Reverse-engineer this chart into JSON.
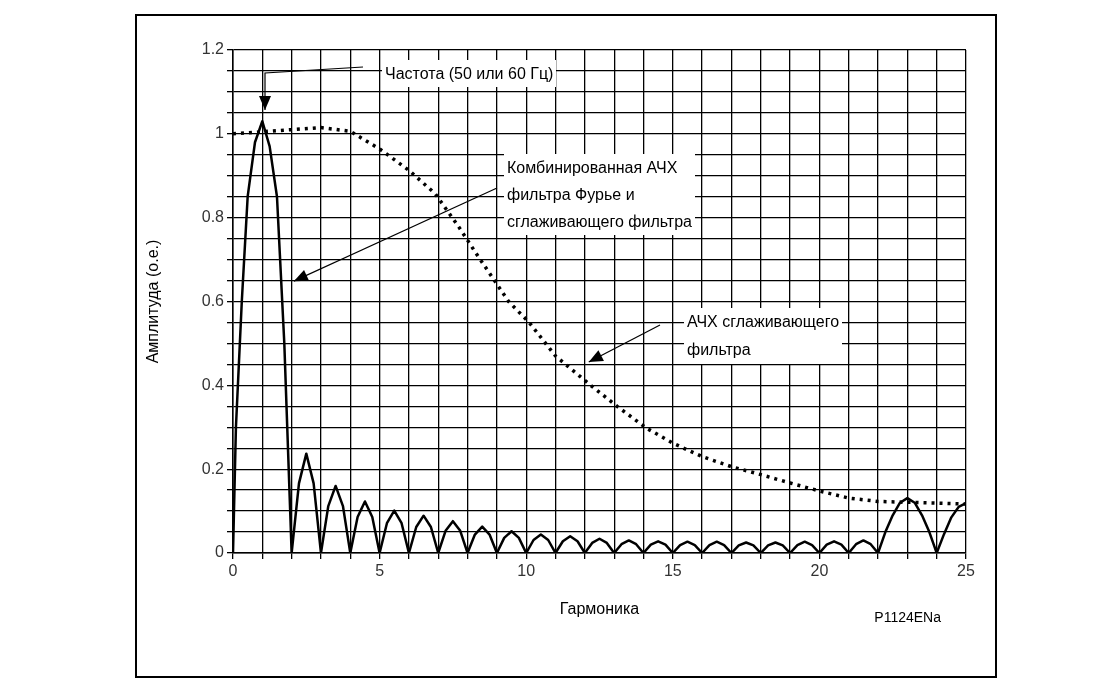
{
  "chart_data": {
    "type": "line",
    "xlabel": "Гармоника",
    "ylabel": "Амплитуда (о.е.)",
    "xlim": [
      0,
      25
    ],
    "ylim": [
      0,
      1.2
    ],
    "xticks": [
      0,
      {
        "value": 1,
        "label": null
      },
      {
        "value": 2,
        "label": null
      },
      {
        "value": 3,
        "label": null
      },
      {
        "value": 4,
        "label": null
      },
      5,
      {
        "value": 6,
        "label": null
      },
      {
        "value": 7,
        "label": null
      },
      {
        "value": 8,
        "label": null
      },
      {
        "value": 9,
        "label": null
      },
      10,
      {
        "value": 11,
        "label": null
      },
      {
        "value": 12,
        "label": null
      },
      {
        "value": 13,
        "label": null
      },
      {
        "value": 14,
        "label": null
      },
      15,
      {
        "value": 16,
        "label": null
      },
      {
        "value": 17,
        "label": null
      },
      {
        "value": 18,
        "label": null
      },
      {
        "value": 19,
        "label": null
      },
      20,
      {
        "value": 21,
        "label": null
      },
      {
        "value": 22,
        "label": null
      },
      {
        "value": 23,
        "label": null
      },
      {
        "value": 24,
        "label": null
      },
      25
    ],
    "yticks": [
      0,
      {
        "value": 0.05,
        "label": null
      },
      {
        "value": 0.1,
        "label": null
      },
      {
        "value": 0.15,
        "label": null
      },
      0.2,
      {
        "value": 0.25,
        "label": null
      },
      {
        "value": 0.3,
        "label": null
      },
      {
        "value": 0.35,
        "label": null
      },
      0.4,
      {
        "value": 0.45,
        "label": null
      },
      {
        "value": 0.5,
        "label": null
      },
      {
        "value": 0.55,
        "label": null
      },
      0.6,
      {
        "value": 0.65,
        "label": null
      },
      {
        "value": 0.7,
        "label": null
      },
      {
        "value": 0.75,
        "label": null
      },
      0.8,
      {
        "value": 0.85,
        "label": null
      },
      {
        "value": 0.9,
        "label": null
      },
      {
        "value": 0.95,
        "label": null
      },
      1,
      {
        "value": 1.05,
        "label": null
      },
      {
        "value": 1.1,
        "label": null
      },
      {
        "value": 1.15,
        "label": null
      },
      1.2
    ],
    "grid": true,
    "legend": false,
    "marker": "none",
    "series": [
      {
        "color": "#000000",
        "line_style": "solid",
        "x": [
          0,
          0.1,
          0.3,
          0.5,
          0.75,
          1,
          1.25,
          1.5,
          1.75,
          2,
          2.25,
          2.5,
          2.75,
          3,
          3.25,
          3.5,
          3.75,
          4,
          4.25,
          4.5,
          4.75,
          5,
          5.25,
          5.5,
          5.75,
          6,
          6.25,
          6.5,
          6.75,
          7,
          7.25,
          7.5,
          7.75,
          8,
          8.25,
          8.5,
          8.75,
          9,
          9.25,
          9.5,
          9.75,
          10,
          10.25,
          10.5,
          10.75,
          11,
          11.25,
          11.5,
          11.75,
          12,
          12.25,
          12.5,
          12.75,
          13,
          13.25,
          13.5,
          13.75,
          14,
          14.25,
          14.5,
          14.75,
          15,
          15.25,
          15.5,
          15.75,
          16,
          16.25,
          16.5,
          16.75,
          17,
          17.25,
          17.5,
          17.75,
          18,
          18.25,
          18.5,
          18.75,
          19,
          19.25,
          19.5,
          19.75,
          20,
          20.25,
          20.5,
          20.75,
          21,
          21.25,
          21.5,
          21.75,
          22,
          22.25,
          22.5,
          22.75,
          23,
          23.25,
          23.5,
          23.75,
          24,
          24.25,
          24.5,
          24.75,
          25
        ],
        "values": [
          0,
          0.3,
          0.6,
          0.85,
          0.98,
          1.03,
          0.97,
          0.85,
          0.5,
          0,
          0.166,
          0.237,
          0.166,
          0,
          0.112,
          0.16,
          0.112,
          0,
          0.086,
          0.123,
          0.086,
          0,
          0.071,
          0.101,
          0.071,
          0,
          0.062,
          0.089,
          0.062,
          0,
          0.053,
          0.076,
          0.053,
          0,
          0.044,
          0.063,
          0.044,
          0,
          0.036,
          0.052,
          0.036,
          0,
          0.031,
          0.044,
          0.031,
          0,
          0.028,
          0.04,
          0.028,
          0,
          0.024,
          0.034,
          0.024,
          0,
          0.021,
          0.03,
          0.021,
          0,
          0.02,
          0.028,
          0.02,
          0,
          0.019,
          0.027,
          0.019,
          0,
          0.019,
          0.027,
          0.019,
          0,
          0.018,
          0.025,
          0.018,
          0,
          0.018,
          0.025,
          0.018,
          0,
          0.019,
          0.027,
          0.019,
          0,
          0.02,
          0.028,
          0.02,
          0,
          0.021,
          0.03,
          0.021,
          0,
          0.05,
          0.09,
          0.12,
          0.131,
          0.12,
          0.09,
          0.05,
          0,
          0.045,
          0.085,
          0.11,
          0.119
        ]
      },
      {
        "color": "#000000",
        "line_style": "dotted",
        "x": [
          0,
          1,
          2,
          3,
          4,
          5,
          6,
          6.9,
          7.7,
          8.3,
          9.4,
          10.1,
          11,
          12.2,
          13.1,
          14.1,
          15,
          16,
          17,
          18,
          19,
          20,
          21,
          22,
          24,
          25
        ],
        "values": [
          1,
          1.005,
          1.01,
          1.015,
          1.006,
          0.964,
          0.913,
          0.857,
          0.778,
          0.714,
          0.6,
          0.55,
          0.47,
          0.4,
          0.35,
          0.298,
          0.262,
          0.23,
          0.206,
          0.187,
          0.167,
          0.148,
          0.131,
          0.123,
          0.119,
          0.117
        ]
      }
    ],
    "annotations": [
      "Частота (50 или 60 Гц)",
      "Комбинированная АЧХ\nфильтра Фурье и\nсглаживающего фильтра",
      "АЧХ сглаживающего\nфильтра",
      "P1124ENa"
    ]
  }
}
